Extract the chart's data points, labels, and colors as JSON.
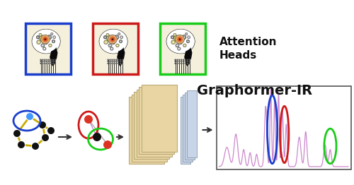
{
  "title": "Graphormer-IR",
  "attention_text": "Attention\nHeads",
  "bg_color": "#ffffff",
  "title_fontsize": 14,
  "attention_fontsize": 11,
  "box_colors": [
    "#1a3fcc",
    "#cc1a1a",
    "#1acc1a"
  ],
  "spectrum_color": "#cc88cc",
  "cream": "#f5f0dc",
  "head_dark": "#0a0a0a",
  "gear_colors": [
    "#d4c97a",
    "#888888",
    "#aaaaaa",
    "#d4c97a",
    "#666666",
    "#bbbbbb",
    "#999999",
    "#cccccc",
    "#777777",
    "#d4c97a",
    "#555555",
    "#aaaaaa"
  ],
  "center_gear_inner": "#cc4400",
  "center_gear_outer": "#dd7755"
}
